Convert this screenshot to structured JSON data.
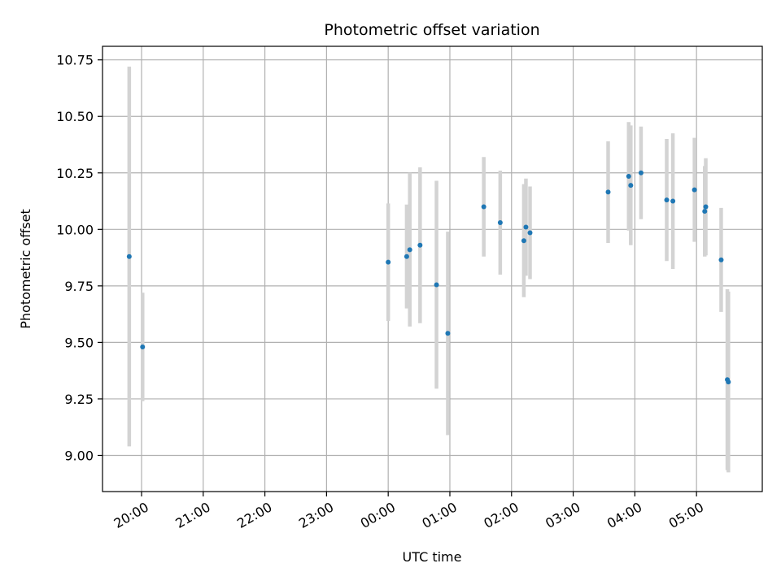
{
  "chart_data": {
    "type": "scatter",
    "title": "Photometric offset variation",
    "xlabel": "UTC time",
    "ylabel": "Photometric offset",
    "x_axis_kind": "time",
    "xlim": [
      "19:22",
      "06:04"
    ],
    "ylim": [
      8.84,
      10.81
    ],
    "grid": true,
    "legend": "none",
    "x_ticks": [
      "20:00",
      "21:00",
      "22:00",
      "23:00",
      "00:00",
      "01:00",
      "02:00",
      "03:00",
      "04:00",
      "05:00"
    ],
    "y_ticks": [
      "9.00",
      "9.25",
      "9.50",
      "9.75",
      "10.00",
      "10.25",
      "10.50",
      "10.75"
    ],
    "colors": {
      "point": "#1f77b4",
      "errorbar": "#d3d3d3",
      "grid": "#b0b0b0"
    },
    "series": [
      {
        "points": [
          {
            "t": "19:48",
            "y": 9.88,
            "err": 0.84
          },
          {
            "t": "20:01",
            "y": 9.48,
            "err": 0.24
          },
          {
            "t": "00:00",
            "y": 9.855,
            "err": 0.26
          },
          {
            "t": "00:18",
            "y": 9.88,
            "err": 0.23
          },
          {
            "t": "00:21",
            "y": 9.91,
            "err": 0.34
          },
          {
            "t": "00:31",
            "y": 9.93,
            "err": 0.345
          },
          {
            "t": "00:47",
            "y": 9.755,
            "err": 0.46
          },
          {
            "t": "00:58",
            "y": 9.54,
            "err": 0.45
          },
          {
            "t": "01:33",
            "y": 10.1,
            "err": 0.22
          },
          {
            "t": "01:49",
            "y": 10.03,
            "err": 0.23
          },
          {
            "t": "02:12",
            "y": 9.95,
            "err": 0.25
          },
          {
            "t": "02:14",
            "y": 10.01,
            "err": 0.215
          },
          {
            "t": "02:18",
            "y": 9.985,
            "err": 0.205
          },
          {
            "t": "03:34",
            "y": 10.165,
            "err": 0.225
          },
          {
            "t": "03:54",
            "y": 10.235,
            "err": 0.24
          },
          {
            "t": "03:56",
            "y": 10.195,
            "err": 0.265
          },
          {
            "t": "04:06",
            "y": 10.25,
            "err": 0.205
          },
          {
            "t": "04:31",
            "y": 10.13,
            "err": 0.27
          },
          {
            "t": "04:37",
            "y": 10.125,
            "err": 0.3
          },
          {
            "t": "04:58",
            "y": 10.175,
            "err": 0.23
          },
          {
            "t": "05:08",
            "y": 10.08,
            "err": 0.2
          },
          {
            "t": "05:09",
            "y": 10.1,
            "err": 0.215
          },
          {
            "t": "05:24",
            "y": 9.865,
            "err": 0.23
          },
          {
            "t": "05:30",
            "y": 9.335,
            "err": 0.4
          },
          {
            "t": "05:31",
            "y": 9.325,
            "err": 0.4
          }
        ]
      }
    ]
  }
}
